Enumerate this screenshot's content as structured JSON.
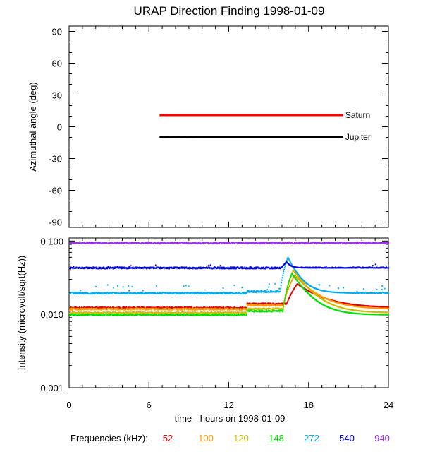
{
  "title": "URAP Direction Finding  1998-01-09",
  "xlabel": "time - hours on 1998-01-09",
  "freq_label": "Frequencies (kHz):",
  "chart_data": [
    {
      "type": "line",
      "panel": "top",
      "ylabel": "Azimuthal angle (deg)",
      "xlim": [
        0,
        24
      ],
      "ylim": [
        -95,
        95
      ],
      "yticks": [
        90,
        60,
        30,
        0,
        -30,
        -60,
        -90
      ],
      "ytick_labels": [
        "90",
        "60",
        "30",
        "0",
        "-30",
        "-60",
        "-90"
      ],
      "series": [
        {
          "name": "Saturn",
          "color": "#ff0000",
          "x": [
            6.8,
            20.6
          ],
          "y": [
            11,
            11
          ]
        },
        {
          "name": "Jupiter",
          "color": "#000000",
          "x": [
            6.8,
            9.8,
            20.6
          ],
          "y": [
            -10,
            -9.5,
            -9.5
          ]
        }
      ]
    },
    {
      "type": "scatter",
      "panel": "bottom",
      "ylabel": "Intensity (microvolt/sqrt(Hz))",
      "xlim": [
        0,
        24
      ],
      "xticks": [
        0,
        6,
        12,
        18,
        24
      ],
      "xtick_labels": [
        "0",
        "6",
        "12",
        "18",
        "24"
      ],
      "yscale": "log",
      "ylim": [
        0.001,
        0.11
      ],
      "yticks": [
        0.1,
        0.01,
        0.001
      ],
      "ytick_labels": [
        "0.100",
        "0.010",
        "0.001"
      ],
      "series": [
        {
          "name": "52",
          "color": "#e00000",
          "base": 0.0123
        },
        {
          "name": "100",
          "color": "#ff9900",
          "base": 0.0118
        },
        {
          "name": "120",
          "color": "#ccbb00",
          "base": 0.0105
        },
        {
          "name": "148",
          "color": "#00e000",
          "base": 0.0098
        },
        {
          "name": "272",
          "color": "#00aaee",
          "base": 0.0195
        },
        {
          "name": "540",
          "color": "#0000dd",
          "base": 0.043
        },
        {
          "name": "940",
          "color": "#9933ee",
          "base": 0.094
        }
      ]
    }
  ]
}
